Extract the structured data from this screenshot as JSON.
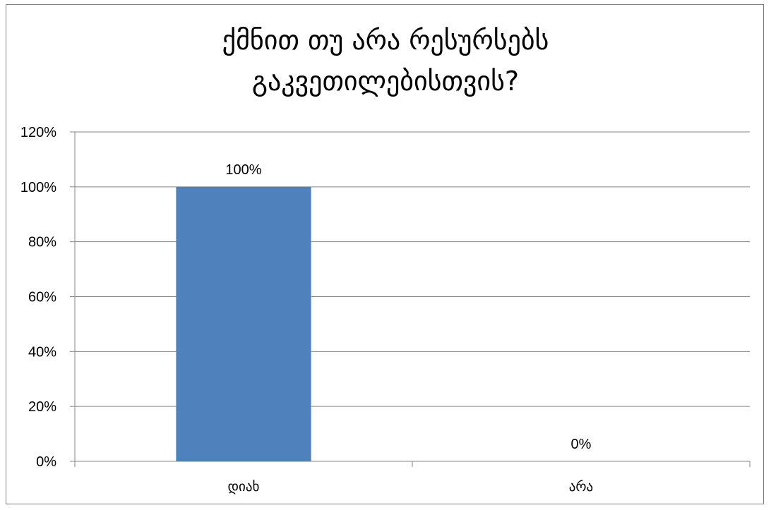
{
  "chart_data": {
    "type": "bar",
    "title": "ქმნით თუ არა რესურსებს\nგაკვეთილებისთვის?",
    "categories": [
      "დიახ",
      "არა"
    ],
    "values": [
      100,
      0
    ],
    "data_labels": [
      "100%",
      "0%"
    ],
    "ylim": [
      0,
      120
    ],
    "yticks": [
      0,
      20,
      40,
      60,
      80,
      100,
      120
    ],
    "ytick_labels": [
      "0%",
      "20%",
      "40%",
      "60%",
      "80%",
      "100%",
      "120%"
    ],
    "xlabel": "",
    "ylabel": "",
    "grid": true,
    "legend": "none",
    "bar_color": "#4f81bd",
    "grid_color": "#868686"
  }
}
